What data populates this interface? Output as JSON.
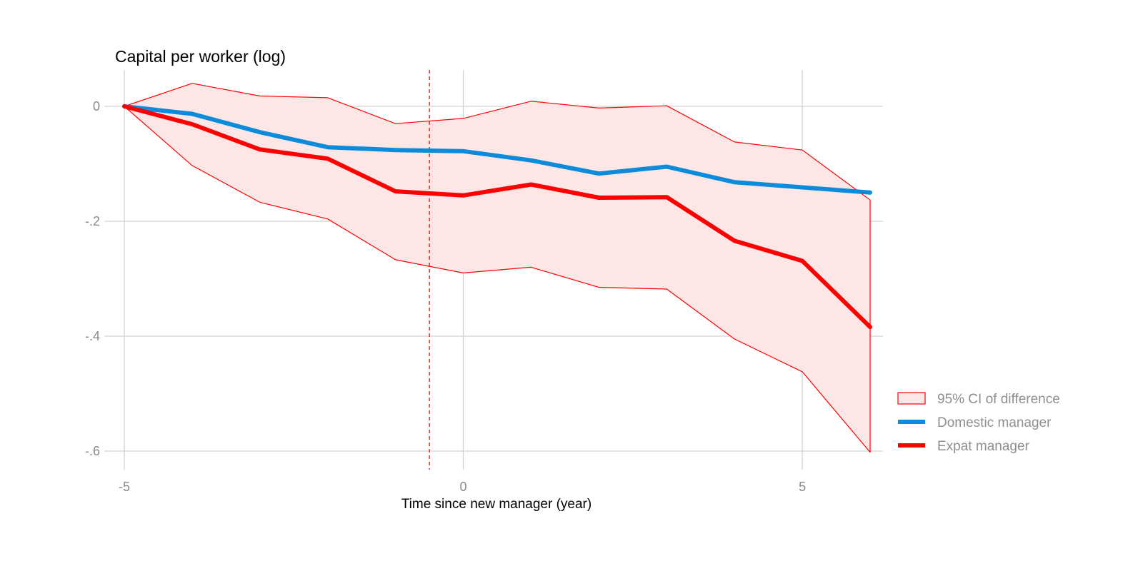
{
  "chart_data": {
    "type": "line",
    "title": "Capital per worker (log)",
    "xlabel": "Time since new manager (year)",
    "ylabel": "",
    "x": [
      -5,
      -4,
      -3,
      -2,
      -1,
      0,
      1,
      2,
      3,
      4,
      5,
      6
    ],
    "xlim": [
      -5,
      6
    ],
    "ylim": [
      -0.6,
      0
    ],
    "xticks": [
      {
        "value": -5,
        "label": "-5"
      },
      {
        "value": 0,
        "label": "0"
      },
      {
        "value": 5,
        "label": "5"
      }
    ],
    "yticks": [
      {
        "value": 0,
        "label": "0"
      },
      {
        "value": -0.2,
        "label": "-.2"
      },
      {
        "value": -0.4,
        "label": "-.4"
      },
      {
        "value": -0.6,
        "label": "-.6"
      }
    ],
    "event_line_x": -0.5,
    "grid": true,
    "legend_position": "right",
    "band": {
      "name": "95% CI of difference",
      "color": "#ff0000",
      "fill": "#fde6e6",
      "upper": [
        0.0,
        0.04,
        0.018,
        0.015,
        -0.03,
        -0.021,
        0.009,
        -0.003,
        0.001,
        -0.062,
        -0.076,
        -0.163
      ],
      "lower": [
        0.0,
        -0.103,
        -0.167,
        -0.196,
        -0.267,
        -0.29,
        -0.28,
        -0.315,
        -0.318,
        -0.405,
        -0.462,
        -0.602
      ]
    },
    "series": [
      {
        "name": "Domestic manager",
        "color": "#0b8bd9",
        "values": [
          0.0,
          -0.013,
          -0.045,
          -0.071,
          -0.076,
          -0.078,
          -0.094,
          -0.117,
          -0.105,
          -0.132,
          -0.141,
          -0.15
        ]
      },
      {
        "name": "Expat manager",
        "color": "#ff0000",
        "values": [
          0.0,
          -0.031,
          -0.075,
          -0.091,
          -0.148,
          -0.155,
          -0.136,
          -0.159,
          -0.158,
          -0.234,
          -0.269,
          -0.384
        ]
      }
    ]
  }
}
